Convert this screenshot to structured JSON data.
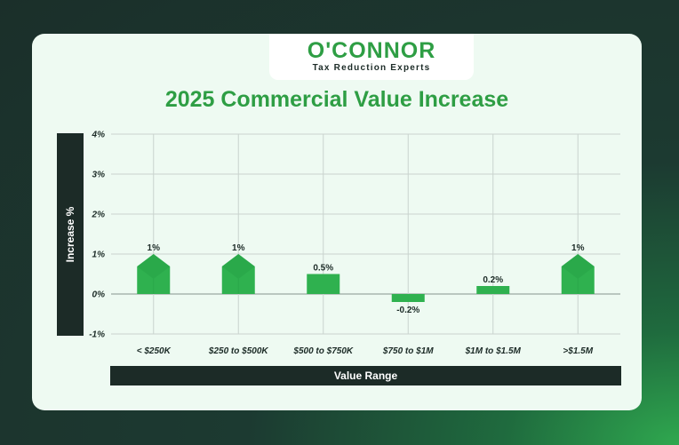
{
  "brand": {
    "name": "O'CONNOR",
    "tagline": "Tax Reduction Experts"
  },
  "colors": {
    "bar": "#2fb14f",
    "bar_dark": "#239a41",
    "axis_bar": "#1c2b27",
    "title": "#2e9e44"
  },
  "chart_data": {
    "type": "bar",
    "title": "2025 Commercial Value Increase",
    "xlabel": "Value Range",
    "ylabel": "Increase %",
    "categories": [
      "< $250K",
      "$250 to $500K",
      "$500 to $750K",
      "$750 to $1M",
      "$1M to $1.5M",
      ">$1.5M"
    ],
    "values": [
      1,
      1,
      0.5,
      -0.2,
      0.2,
      1
    ],
    "data_labels": [
      "1%",
      "1%",
      "0.5%",
      "-0.2%",
      "0.2%",
      "1%"
    ],
    "marker_icon": [
      "house-icon",
      "house-icon",
      null,
      null,
      null,
      "house-icon"
    ],
    "ylim": [
      -1,
      4
    ],
    "yticks": [
      4,
      3,
      2,
      1,
      0,
      -1
    ],
    "ytick_labels": [
      "4%",
      "3%",
      "2%",
      "1%",
      "0%",
      "-1%"
    ],
    "grid": true,
    "legend": "none"
  }
}
